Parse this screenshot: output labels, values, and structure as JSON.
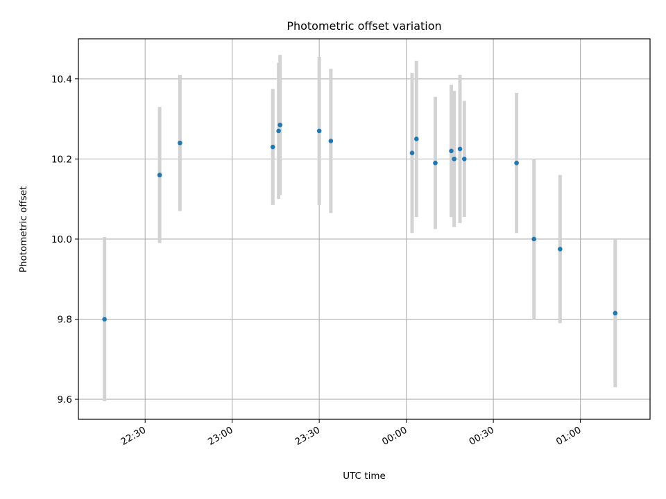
{
  "chart_data": {
    "type": "scatter",
    "title": "Photometric offset variation",
    "xlabel": "UTC time",
    "ylabel": "Photometric offset",
    "grid": true,
    "x_axis_kind": "time",
    "x_date": "2000-01-01",
    "xlim": [
      "22:07",
      "01:24 +1"
    ],
    "ylim": [
      9.55,
      10.5
    ],
    "x_ticks": [
      "22:30",
      "23:00",
      "23:30",
      "00:00",
      "00:30",
      "01:00"
    ],
    "y_ticks": [
      9.6,
      9.8,
      10.0,
      10.2,
      10.4
    ],
    "y_tick_labels": [
      "9.6",
      "9.8",
      "10.0",
      "10.2",
      "10.4"
    ],
    "marker_color": "#1f77b4",
    "errorbar_color": "#d3d3d3",
    "points": [
      {
        "time": "22:16",
        "y": 9.8,
        "err": 0.205
      },
      {
        "time": "22:35",
        "y": 10.16,
        "err": 0.17
      },
      {
        "time": "22:42",
        "y": 10.24,
        "err": 0.17
      },
      {
        "time": "23:14",
        "y": 10.23,
        "err": 0.145
      },
      {
        "time": "23:16",
        "y": 10.27,
        "err": 0.17
      },
      {
        "time": "23:16.5",
        "y": 10.285,
        "err": 0.175
      },
      {
        "time": "23:30",
        "y": 10.27,
        "err": 0.185
      },
      {
        "time": "23:34",
        "y": 10.245,
        "err": 0.18
      },
      {
        "time": "00:02",
        "y": 10.215,
        "err": 0.2
      },
      {
        "time": "00:03.5",
        "y": 10.25,
        "err": 0.195
      },
      {
        "time": "00:10",
        "y": 10.19,
        "err": 0.165
      },
      {
        "time": "00:15.5",
        "y": 10.22,
        "err": 0.165
      },
      {
        "time": "00:16.5",
        "y": 10.2,
        "err": 0.17
      },
      {
        "time": "00:18.5",
        "y": 10.225,
        "err": 0.185
      },
      {
        "time": "00:20",
        "y": 10.2,
        "err": 0.145
      },
      {
        "time": "00:38",
        "y": 10.19,
        "err": 0.175
      },
      {
        "time": "00:44",
        "y": 10.0,
        "err": 0.2
      },
      {
        "time": "00:53",
        "y": 9.975,
        "err": 0.185
      },
      {
        "time": "01:12",
        "y": 9.815,
        "err": 0.185
      }
    ]
  }
}
